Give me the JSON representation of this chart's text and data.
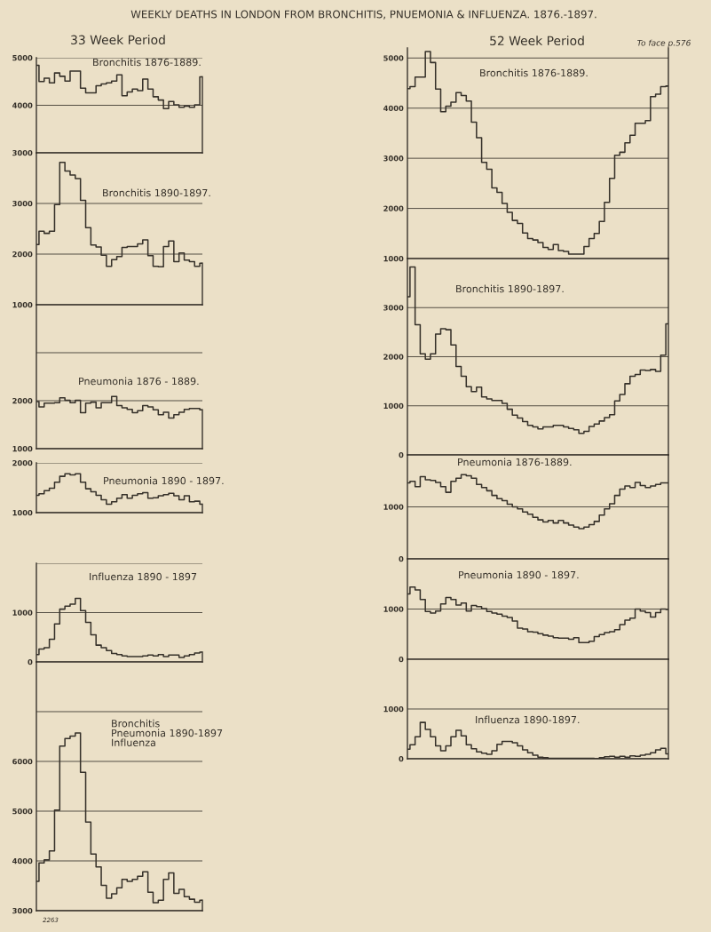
{
  "chart_data": [
    {
      "type": "other",
      "title": "WEEKLY DEATHS IN LONDON FROM BRONCHITIS, PNUEMONIA & INFLUENZA. 1876.-1897.",
      "annotations": [
        "33 Week Period",
        "52 Week Period",
        "To face p.576"
      ]
    },
    {
      "type": "step",
      "title": "Bronchitis 1876-1889.",
      "categories": [
        null,
        null,
        null,
        null,
        null,
        null,
        null,
        null,
        null,
        null,
        null,
        null,
        null,
        null,
        null,
        null,
        null,
        null,
        null,
        null,
        null,
        null,
        null,
        null,
        null,
        null,
        null,
        null,
        null,
        null,
        null,
        null,
        null
      ],
      "values": [
        4840,
        4500,
        4570,
        4470,
        4680,
        4610,
        4510,
        4720,
        4720,
        4360,
        4260,
        4260,
        4410,
        4450,
        4470,
        4510,
        4640,
        4200,
        4280,
        4340,
        4310,
        4550,
        4340,
        4180,
        4110,
        3930,
        4080,
        4010,
        3960,
        3980,
        3960,
        4010,
        4600
      ],
      "color": "#36312a",
      "ylim": [
        3000,
        5000
      ],
      "yticks": [
        3000,
        4000,
        5000
      ],
      "grid": "y",
      "tick_labels": "y"
    },
    {
      "type": "step",
      "title": "Bronchitis 1890-1897.",
      "categories": [
        null,
        null,
        null,
        null,
        null,
        null,
        null,
        null,
        null,
        null,
        null,
        null,
        null,
        null,
        null,
        null,
        null,
        null,
        null,
        null,
        null,
        null,
        null,
        null,
        null,
        null,
        null,
        null,
        null,
        null,
        null,
        null,
        null
      ],
      "values": [
        2190,
        2450,
        2410,
        2450,
        2980,
        3810,
        3640,
        3560,
        3490,
        3060,
        2520,
        2180,
        2140,
        1980,
        1760,
        1890,
        1950,
        2130,
        2150,
        2150,
        2200,
        2280,
        1970,
        1760,
        1750,
        2150,
        2260,
        1850,
        2020,
        1880,
        1850,
        1760,
        1820
      ],
      "color": "#36312a",
      "ylim": [
        1000,
        4000
      ],
      "yticks": [
        1000,
        2000,
        3000
      ],
      "grid": "y",
      "tick_labels": "y"
    },
    {
      "type": "step",
      "title": "Pneumonia 1876 - 1889.",
      "categories": [
        null,
        null,
        null,
        null,
        null,
        null,
        null,
        null,
        null,
        null,
        null,
        null,
        null,
        null,
        null,
        null,
        null,
        null,
        null,
        null,
        null,
        null,
        null,
        null,
        null,
        null,
        null,
        null,
        null,
        null,
        null,
        null,
        null
      ],
      "values": [
        1980,
        1870,
        1950,
        1950,
        1960,
        2060,
        2010,
        1960,
        2010,
        1750,
        1950,
        1970,
        1850,
        1960,
        1960,
        2090,
        1900,
        1850,
        1820,
        1750,
        1790,
        1900,
        1870,
        1810,
        1710,
        1760,
        1640,
        1710,
        1760,
        1820,
        1840,
        1840,
        1810
      ],
      "color": "#36312a",
      "ylim": [
        1000,
        4000
      ],
      "yticks": [
        1000,
        2000,
        {
          "value": 3000,
          "label": null
        }
      ],
      "grid": "y",
      "tick_labels": "y"
    },
    {
      "type": "step",
      "title": "Pneumonia 1890 - 1897.",
      "categories": [
        null,
        null,
        null,
        null,
        null,
        null,
        null,
        null,
        null,
        null,
        null,
        null,
        null,
        null,
        null,
        null,
        null,
        null,
        null,
        null,
        null,
        null,
        null,
        null,
        null,
        null,
        null,
        null,
        null,
        null,
        null,
        null,
        null
      ],
      "values": [
        1350,
        1380,
        1440,
        1490,
        1610,
        1730,
        1780,
        1760,
        1780,
        1610,
        1480,
        1420,
        1350,
        1260,
        1170,
        1220,
        1290,
        1360,
        1290,
        1350,
        1380,
        1400,
        1290,
        1300,
        1340,
        1360,
        1390,
        1340,
        1260,
        1340,
        1220,
        1230,
        1170
      ],
      "color": "#36312a",
      "ylim": [
        1000,
        2000
      ],
      "yticks": [
        1000,
        2000
      ],
      "grid": "y",
      "tick_labels": "y"
    },
    {
      "type": "step",
      "title": "Influenza 1890 - 1897",
      "categories": [
        null,
        null,
        null,
        null,
        null,
        null,
        null,
        null,
        null,
        null,
        null,
        null,
        null,
        null,
        null,
        null,
        null,
        null,
        null,
        null,
        null,
        null,
        null,
        null,
        null,
        null,
        null,
        null,
        null,
        null,
        null,
        null,
        null
      ],
      "values": [
        150,
        260,
        290,
        460,
        770,
        1070,
        1130,
        1170,
        1290,
        1040,
        800,
        550,
        340,
        290,
        230,
        170,
        150,
        120,
        110,
        110,
        110,
        120,
        140,
        120,
        150,
        110,
        140,
        140,
        90,
        120,
        150,
        180,
        200
      ],
      "color": "#36312a",
      "ylim": [
        0,
        2000
      ],
      "yticks": [
        0,
        1000,
        {
          "value": 2000,
          "label": null
        }
      ],
      "grid": "y",
      "tick_labels": "y"
    },
    {
      "type": "step",
      "title": "Bronchitis\nPneumonia 1890-1897\nInfluenza",
      "categories": [
        null,
        null,
        null,
        null,
        null,
        null,
        null,
        null,
        null,
        null,
        null,
        null,
        null,
        null,
        null,
        null,
        null,
        null,
        null,
        null,
        null,
        null,
        null,
        null,
        null,
        null,
        null,
        null,
        null,
        null,
        null,
        null,
        null
      ],
      "values": [
        3590,
        3960,
        4020,
        4200,
        5020,
        6310,
        6460,
        6510,
        6570,
        5780,
        4780,
        4140,
        3880,
        3510,
        3250,
        3340,
        3460,
        3630,
        3590,
        3630,
        3690,
        3780,
        3370,
        3160,
        3210,
        3630,
        3760,
        3350,
        3430,
        3280,
        3230,
        3170,
        3210
      ],
      "color": "#36312a",
      "ylim": [
        3000,
        8000
      ],
      "yticks": [
        3000,
        4000,
        5000,
        6000,
        {
          "value": 7000,
          "label": null
        }
      ],
      "grid": "y",
      "tick_labels": "y",
      "annotations": [
        "2263"
      ]
    },
    {
      "type": "step",
      "title": "Bronchitis 1876-1889.",
      "categories": [
        null,
        null,
        null,
        null,
        null,
        null,
        null,
        null,
        null,
        null,
        null,
        null,
        null,
        null,
        null,
        null,
        null,
        null,
        null,
        null,
        null,
        null,
        null,
        null,
        null,
        null,
        null,
        null,
        null,
        null,
        null,
        null,
        null,
        null,
        null,
        null,
        null,
        null,
        null,
        null,
        null,
        null,
        null,
        null,
        null,
        null,
        null,
        null,
        null,
        null,
        null,
        null
      ],
      "values": [
        4390,
        4430,
        4620,
        4620,
        5130,
        4910,
        4380,
        3930,
        4040,
        4120,
        4310,
        4250,
        4140,
        3720,
        3410,
        2920,
        2780,
        2410,
        2320,
        2100,
        1920,
        1760,
        1700,
        1510,
        1400,
        1370,
        1320,
        1220,
        1180,
        1280,
        1160,
        1140,
        1090,
        1090,
        1090,
        1240,
        1400,
        1500,
        1740,
        2120,
        2600,
        3060,
        3120,
        3310,
        3460,
        3700,
        3700,
        3750,
        4230,
        4280,
        4430,
        4440
      ],
      "color": "#36312a",
      "ylim": [
        1000,
        5200
      ],
      "yticks": [
        1000,
        2000,
        3000,
        4000,
        5000
      ],
      "grid": "y",
      "tick_labels": "y"
    },
    {
      "type": "step",
      "title": "Bronchitis 1890-1897.",
      "categories": [
        null,
        null,
        null,
        null,
        null,
        null,
        null,
        null,
        null,
        null,
        null,
        null,
        null,
        null,
        null,
        null,
        null,
        null,
        null,
        null,
        null,
        null,
        null,
        null,
        null,
        null,
        null,
        null,
        null,
        null,
        null,
        null,
        null,
        null,
        null,
        null,
        null,
        null,
        null,
        null,
        null,
        null,
        null,
        null,
        null,
        null,
        null,
        null,
        null,
        null,
        null,
        null
      ],
      "values": [
        3220,
        3830,
        2650,
        2060,
        1950,
        2060,
        2460,
        2570,
        2550,
        2240,
        1800,
        1600,
        1390,
        1290,
        1380,
        1180,
        1140,
        1110,
        1110,
        1050,
        930,
        810,
        750,
        680,
        600,
        570,
        530,
        570,
        570,
        600,
        600,
        570,
        540,
        510,
        440,
        480,
        580,
        630,
        690,
        760,
        820,
        1100,
        1230,
        1450,
        1600,
        1640,
        1730,
        1720,
        1740,
        1700,
        2030,
        2670
      ],
      "color": "#36312a",
      "ylim": [
        0,
        4000
      ],
      "yticks": [
        0,
        1000,
        2000,
        3000
      ],
      "grid": "y",
      "tick_labels": "y"
    },
    {
      "type": "step",
      "title": "Pneumonia 1876-1889.",
      "categories": [
        null,
        null,
        null,
        null,
        null,
        null,
        null,
        null,
        null,
        null,
        null,
        null,
        null,
        null,
        null,
        null,
        null,
        null,
        null,
        null,
        null,
        null,
        null,
        null,
        null,
        null,
        null,
        null,
        null,
        null,
        null,
        null,
        null,
        null,
        null,
        null,
        null,
        null,
        null,
        null,
        null,
        null,
        null,
        null,
        null,
        null,
        null,
        null,
        null,
        null,
        null,
        null
      ],
      "values": [
        1460,
        1490,
        1390,
        1580,
        1520,
        1510,
        1470,
        1390,
        1280,
        1490,
        1550,
        1620,
        1600,
        1550,
        1430,
        1370,
        1310,
        1220,
        1160,
        1120,
        1050,
        1000,
        960,
        900,
        860,
        800,
        750,
        710,
        740,
        690,
        740,
        690,
        650,
        610,
        580,
        610,
        660,
        720,
        840,
        960,
        1060,
        1220,
        1340,
        1400,
        1370,
        1470,
        1410,
        1370,
        1400,
        1430,
        1460,
        1460
      ],
      "color": "#36312a",
      "ylim": [
        0,
        2000
      ],
      "yticks": [
        0,
        1000
      ],
      "grid": "y",
      "tick_labels": "y"
    },
    {
      "type": "step",
      "title": "Pneumonia 1890 - 1897.",
      "categories": [
        null,
        null,
        null,
        null,
        null,
        null,
        null,
        null,
        null,
        null,
        null,
        null,
        null,
        null,
        null,
        null,
        null,
        null,
        null,
        null,
        null,
        null,
        null,
        null,
        null,
        null,
        null,
        null,
        null,
        null,
        null,
        null,
        null,
        null,
        null,
        null,
        null,
        null,
        null,
        null,
        null,
        null,
        null,
        null,
        null,
        null,
        null,
        null,
        null,
        null,
        null,
        null
      ],
      "values": [
        1300,
        1440,
        1380,
        1190,
        950,
        920,
        960,
        1100,
        1230,
        1190,
        1080,
        1120,
        960,
        1070,
        1050,
        1010,
        950,
        920,
        900,
        860,
        830,
        760,
        620,
        600,
        550,
        540,
        510,
        480,
        460,
        430,
        420,
        420,
        400,
        430,
        330,
        330,
        360,
        450,
        490,
        530,
        550,
        590,
        690,
        780,
        820,
        1000,
        960,
        930,
        840,
        930,
        1000,
        990
      ],
      "color": "#36312a",
      "ylim": [
        0,
        2000
      ],
      "yticks": [
        0,
        1000
      ],
      "grid": "y",
      "tick_labels": "y"
    },
    {
      "type": "step",
      "title": "Influenza 1890-1897.",
      "categories": [
        null,
        null,
        null,
        null,
        null,
        null,
        null,
        null,
        null,
        null,
        null,
        null,
        null,
        null,
        null,
        null,
        null,
        null,
        null,
        null,
        null,
        null,
        null,
        null,
        null,
        null,
        null,
        null,
        null,
        null,
        null,
        null,
        null,
        null,
        null,
        null,
        null,
        null,
        null,
        null,
        null,
        null,
        null,
        null,
        null,
        null,
        null,
        null,
        null,
        null,
        null,
        null
      ],
      "values": [
        190,
        280,
        440,
        730,
        590,
        440,
        260,
        160,
        260,
        440,
        570,
        460,
        280,
        200,
        140,
        110,
        90,
        160,
        290,
        350,
        350,
        320,
        260,
        180,
        120,
        70,
        30,
        20,
        10,
        10,
        10,
        10,
        10,
        10,
        10,
        10,
        10,
        0,
        20,
        40,
        50,
        30,
        50,
        30,
        60,
        50,
        70,
        90,
        120,
        180,
        210,
        100
      ],
      "color": "#36312a",
      "ylim": [
        0,
        2000
      ],
      "yticks": [
        0,
        1000
      ],
      "grid": "y",
      "tick_labels": "y"
    }
  ]
}
